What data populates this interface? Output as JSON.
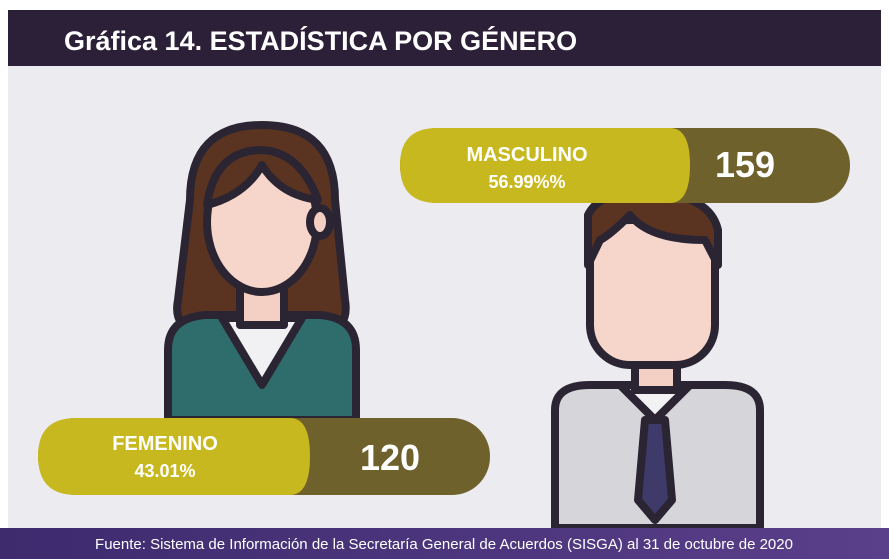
{
  "header": {
    "title": "Gráfica 14.  ESTADÍSTICA POR GÉNERO"
  },
  "items": [
    {
      "label": "MASCULINO",
      "percent": "56.99%%",
      "count": 159
    },
    {
      "label": "FEMENINO",
      "percent": "43.01%",
      "count": 120
    }
  ],
  "footer": {
    "source": "Fuente: Sistema de Información de la Secretaría General de Acuerdos (SISGA) al 31 de octubre de 2020"
  }
}
